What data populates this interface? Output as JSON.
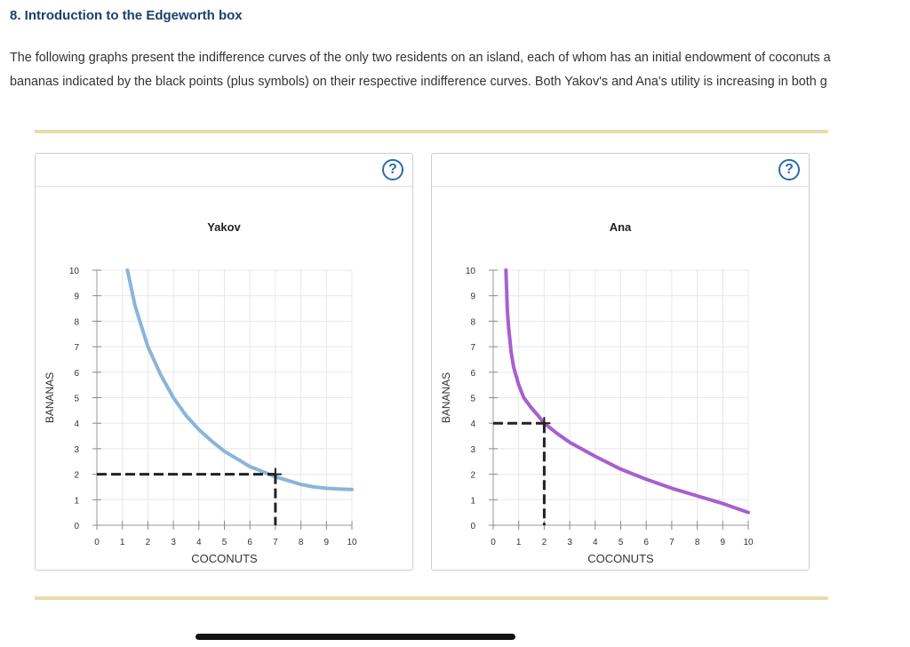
{
  "heading": "8. Introduction to the Edgeworth box",
  "paragraph": {
    "line1": "The following graphs present the indifference curves of the only two residents on an island, each of whom has an initial endowment of coconuts a",
    "line2": "bananas indicated by the black points (plus symbols) on their respective indifference curves. Both Yakov's and Ana's utility is increasing in both g"
  },
  "help_label": "?",
  "colors": {
    "yakov_curve": "#8bb4d9",
    "ana_curve": "#a85fd0",
    "endowment": "#222222",
    "rule": "#e6dcae",
    "heading": "#1d3f6b"
  },
  "chart_data": [
    {
      "type": "line",
      "title": "Yakov",
      "xlabel": "COCONUTS",
      "ylabel": "BANANAS",
      "xlim": [
        0,
        10
      ],
      "ylim": [
        0,
        10
      ],
      "xticks": [
        0,
        1,
        2,
        3,
        4,
        5,
        6,
        7,
        8,
        9,
        10
      ],
      "yticks": [
        0,
        1,
        2,
        3,
        4,
        5,
        6,
        7,
        8,
        9,
        10
      ],
      "grid": true,
      "series": [
        {
          "name": "Yakov indifference curve",
          "x": [
            1.2,
            1.5,
            2.0,
            2.5,
            3.0,
            3.5,
            4.0,
            4.5,
            5.0,
            5.5,
            6.0,
            6.5,
            7.0,
            7.5,
            8.0,
            8.5,
            9.0,
            9.5,
            10.0
          ],
          "y": [
            10.0,
            8.6,
            7.0,
            5.9,
            5.0,
            4.3,
            3.75,
            3.3,
            2.9,
            2.6,
            2.3,
            2.1,
            1.9,
            1.75,
            1.6,
            1.5,
            1.45,
            1.42,
            1.4
          ]
        }
      ],
      "endowment": {
        "x": 7,
        "y": 2
      }
    },
    {
      "type": "line",
      "title": "Ana",
      "xlabel": "COCONUTS",
      "ylabel": "BANANAS",
      "xlim": [
        0,
        10
      ],
      "ylim": [
        0,
        10
      ],
      "xticks": [
        0,
        1,
        2,
        3,
        4,
        5,
        6,
        7,
        8,
        9,
        10
      ],
      "yticks": [
        0,
        1,
        2,
        3,
        4,
        5,
        6,
        7,
        8,
        9,
        10
      ],
      "grid": true,
      "series": [
        {
          "name": "Ana indifference curve",
          "x": [
            0.5,
            0.55,
            0.6,
            0.7,
            0.8,
            1.0,
            1.2,
            1.5,
            1.8,
            2.0,
            2.5,
            3.0,
            4.0,
            5.0,
            6.0,
            7.0,
            8.0,
            9.0,
            10.0
          ],
          "y": [
            10.0,
            8.5,
            7.8,
            6.8,
            6.2,
            5.5,
            5.0,
            4.6,
            4.25,
            4.0,
            3.6,
            3.25,
            2.7,
            2.2,
            1.8,
            1.45,
            1.15,
            0.85,
            0.5
          ]
        }
      ],
      "endowment": {
        "x": 2,
        "y": 4
      }
    }
  ]
}
